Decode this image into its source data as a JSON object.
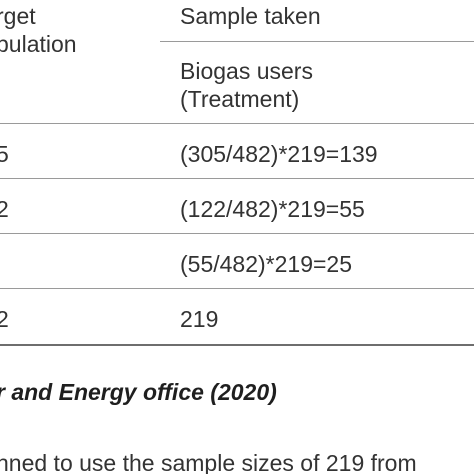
{
  "table": {
    "header": {
      "target_line1": "rget",
      "target_line2": "pulation",
      "sample_taken": "Sample taken",
      "biogas_line1": "Biogas users",
      "biogas_line2": "(Treatment)"
    },
    "rows": [
      {
        "target": "5",
        "sample": "(305/482)*219=139"
      },
      {
        "target": "2",
        "sample": "(122/482)*219=55"
      },
      {
        "target": "",
        "sample": "(55/482)*219=25"
      },
      {
        "target": "2",
        "sample": "219"
      }
    ]
  },
  "source": "r and Energy office (2020)",
  "body_text": "nned to use the sample sizes of 219 from"
}
